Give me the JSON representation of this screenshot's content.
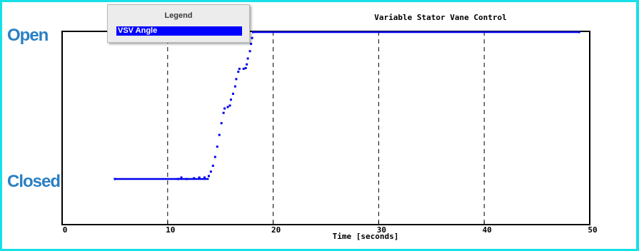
{
  "chart_data": {
    "type": "scatter",
    "title": "Variable Stator Vane Control",
    "xlabel": "Time [seconds]",
    "ylabel": "",
    "xlim": [
      0,
      50
    ],
    "ylim": [
      0,
      100
    ],
    "x_ticks": [
      "0",
      "10",
      "20",
      "30",
      "40",
      "50"
    ],
    "y_tick_labels": [
      {
        "label": "Open",
        "value": 100
      },
      {
        "label": "Closed",
        "value": 0
      }
    ],
    "grid": "vertical dashed at 10, 20, 30, 40",
    "legend": {
      "title": "Legend",
      "position": "top-left",
      "entries": [
        "VSV Angle"
      ]
    },
    "series": [
      {
        "name": "VSV Angle",
        "color": "#0000ee",
        "points": [
          [
            5.0,
            0
          ],
          [
            11.0,
            0
          ],
          [
            11.3,
            1
          ],
          [
            11.8,
            0
          ],
          [
            12.5,
            0.5
          ],
          [
            13.0,
            1
          ],
          [
            13.5,
            1
          ],
          [
            13.9,
            2
          ],
          [
            14.1,
            5
          ],
          [
            14.3,
            9
          ],
          [
            14.5,
            15
          ],
          [
            14.7,
            22
          ],
          [
            14.9,
            30
          ],
          [
            15.1,
            38
          ],
          [
            15.3,
            45
          ],
          [
            15.4,
            48
          ],
          [
            15.7,
            49
          ],
          [
            15.9,
            50
          ],
          [
            16.0,
            54
          ],
          [
            16.2,
            58
          ],
          [
            16.4,
            63
          ],
          [
            16.5,
            68
          ],
          [
            16.7,
            73
          ],
          [
            16.8,
            75
          ],
          [
            17.2,
            75
          ],
          [
            17.4,
            75.5
          ],
          [
            17.5,
            78
          ],
          [
            17.6,
            82
          ],
          [
            17.8,
            87
          ],
          [
            17.9,
            92
          ],
          [
            18.0,
            96
          ],
          [
            18.1,
            100
          ],
          [
            49.0,
            100
          ]
        ]
      }
    ]
  }
}
